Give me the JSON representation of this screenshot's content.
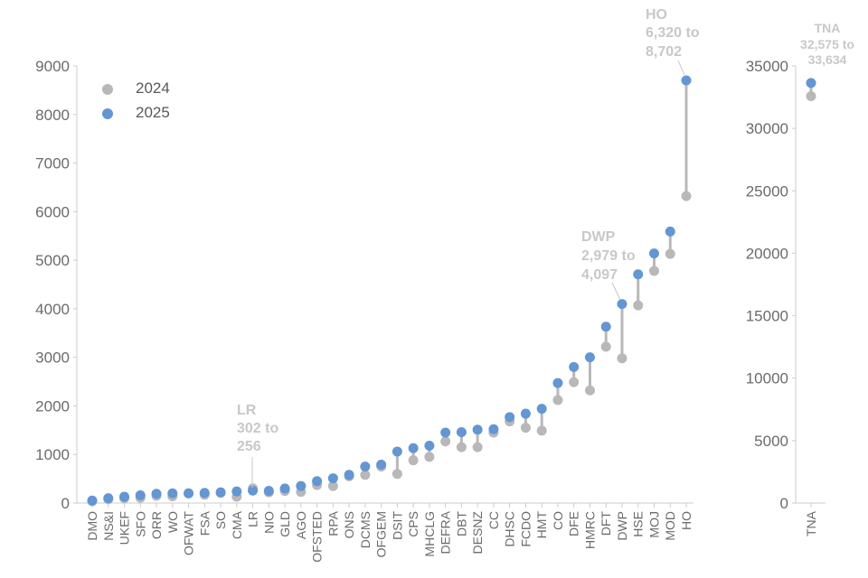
{
  "colors": {
    "y2024": "#b8b8b8",
    "y2025": "#6396d3",
    "connector": "#b8b8b8",
    "annotation": "#c8c8c8",
    "axis": "#cccccc",
    "text": "#6b6b6b"
  },
  "legend": {
    "items": [
      {
        "label": "2024",
        "color_key": "y2024"
      },
      {
        "label": "2025",
        "color_key": "y2025"
      }
    ],
    "placement": "top-left"
  },
  "annotations": {
    "lr": {
      "lines": [
        "LR",
        "302 to",
        "256"
      ]
    },
    "dwp": {
      "lines": [
        "DWP",
        "2,979 to",
        "4,097"
      ]
    },
    "ho": {
      "lines": [
        "HO",
        "6,320 to",
        "8,702"
      ]
    },
    "tna": {
      "lines": [
        "TNA",
        "32,575 to",
        "33,634"
      ]
    }
  },
  "chart_data": [
    {
      "type": "scatter",
      "subtype": "dumbbell",
      "title": "",
      "xlabel": "",
      "ylabel": "",
      "ylim": [
        0,
        9000
      ],
      "yticks": [
        0,
        1000,
        2000,
        3000,
        4000,
        5000,
        6000,
        7000,
        8000,
        9000
      ],
      "grid": false,
      "categories": [
        "DMO",
        "NS&I",
        "UKEF",
        "SFO",
        "ORR",
        "WO",
        "OFWAT",
        "FSA",
        "SO",
        "CMA",
        "LR",
        "NIO",
        "GLD",
        "AGO",
        "OFSTED",
        "RPA",
        "ONS",
        "DCMS",
        "OFGEM",
        "DSIT",
        "CPS",
        "MHCLG",
        "DEFRA",
        "DBT",
        "DESNZ",
        "CC",
        "DHSC",
        "FCDO",
        "HMT",
        "CO",
        "DFE",
        "HMRC",
        "DFT",
        "DWP",
        "HSE",
        "MOJ",
        "MOD",
        "HO"
      ],
      "series": [
        {
          "name": "2024",
          "values": [
            40,
            80,
            100,
            110,
            150,
            140,
            200,
            170,
            210,
            130,
            302,
            220,
            250,
            230,
            370,
            350,
            550,
            580,
            750,
            600,
            880,
            950,
            1270,
            1150,
            1150,
            1450,
            1680,
            1550,
            1490,
            2120,
            2490,
            2320,
            3220,
            2979,
            4070,
            4780,
            5130,
            6320
          ]
        },
        {
          "name": "2025",
          "values": [
            50,
            100,
            130,
            160,
            190,
            200,
            200,
            210,
            220,
            240,
            256,
            250,
            300,
            350,
            450,
            510,
            580,
            750,
            790,
            1060,
            1130,
            1180,
            1450,
            1460,
            1510,
            1520,
            1770,
            1840,
            1940,
            2470,
            2800,
            3000,
            3630,
            4097,
            4710,
            5140,
            5590,
            8702
          ]
        }
      ]
    },
    {
      "type": "scatter",
      "subtype": "dumbbell",
      "title": "",
      "xlabel": "",
      "ylabel": "",
      "ylim": [
        0,
        35000
      ],
      "yticks": [
        0,
        5000,
        10000,
        15000,
        20000,
        25000,
        30000,
        35000
      ],
      "grid": false,
      "categories": [
        "TNA"
      ],
      "series": [
        {
          "name": "2024",
          "values": [
            32575
          ]
        },
        {
          "name": "2025",
          "values": [
            33634
          ]
        }
      ]
    }
  ]
}
